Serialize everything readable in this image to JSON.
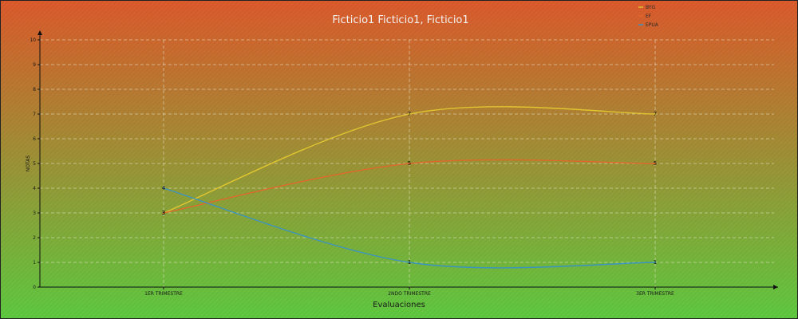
{
  "chart_data": {
    "type": "line",
    "title": "Ficticio1 Ficticio1, Ficticio1",
    "xlabel": "Evaluaciones",
    "ylabel": "NOTAS",
    "categories": [
      "1ER TRIMESTRE",
      "2NDO TRIMESTRE",
      "3ER TRIMESTRE"
    ],
    "ylim": [
      0,
      10
    ],
    "yticks": [
      0,
      1,
      2,
      3,
      4,
      5,
      6,
      7,
      8,
      9,
      10
    ],
    "grid": true,
    "legend_position": "top-right",
    "series": [
      {
        "name": "BYG",
        "values": [
          3,
          7,
          7
        ],
        "color": "#e0c531"
      },
      {
        "name": "EF",
        "values": [
          3,
          5,
          5
        ],
        "color": "#e2672b"
      },
      {
        "name": "EPUA",
        "values": [
          4,
          1,
          1
        ],
        "color": "#3a93c2"
      }
    ],
    "colors": {
      "background_top": "#dc5a2c",
      "background_bottom": "#5ec940",
      "axis": "#111111",
      "grid": "#e8e8c8"
    }
  }
}
